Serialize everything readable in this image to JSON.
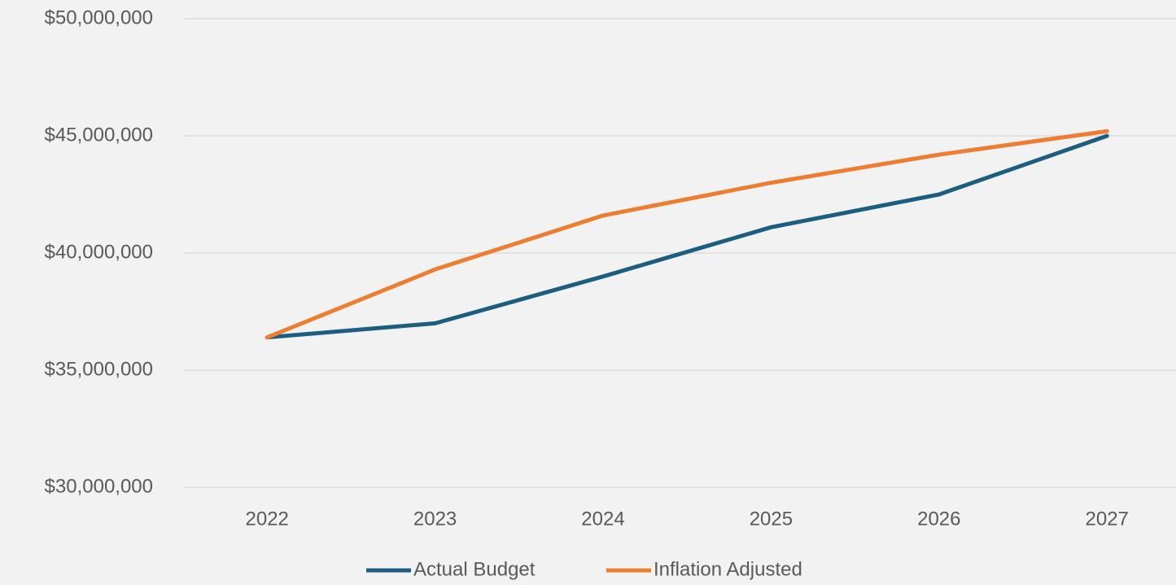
{
  "chart_data": {
    "type": "line",
    "categories": [
      "2022",
      "2023",
      "2024",
      "2025",
      "2026",
      "2027"
    ],
    "series": [
      {
        "name": "Actual Budget",
        "color": "#1b5e80",
        "values": [
          36400000,
          37000000,
          39000000,
          41100000,
          42500000,
          45000000
        ]
      },
      {
        "name": "Inflation Adjusted",
        "color": "#ed7d31",
        "values": [
          36400000,
          39300000,
          41600000,
          43000000,
          44200000,
          45200000
        ]
      }
    ],
    "ylim": [
      30000000,
      50000000
    ],
    "yticks": [
      {
        "value": 30000000,
        "label": "$30,000,000"
      },
      {
        "value": 35000000,
        "label": "$35,000,000"
      },
      {
        "value": 40000000,
        "label": "$40,000,000"
      },
      {
        "value": 45000000,
        "label": "$45,000,000"
      },
      {
        "value": 50000000,
        "label": "$50,000,000"
      }
    ],
    "grid": true,
    "legend": "bottom"
  }
}
